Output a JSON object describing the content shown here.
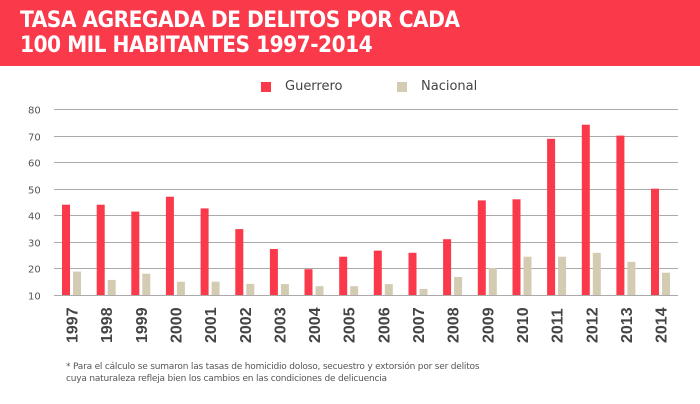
{
  "header": {
    "title_line1": "TASA AGREGADA DE DELITOS POR CADA",
    "title_line2": "100 MIL HABITANTES 1997-2014"
  },
  "colors": {
    "banner": "#fa394b",
    "guerrero": "#fa394b",
    "nacional": "#d4ccb2",
    "grid": "#aaaaaa",
    "tick_text": "#444444"
  },
  "footnote": {
    "line1": "* Para el cálculo se sumaron las tasas de homicidio doloso, secuestro y extorsión por ser delitos",
    "line2": "cuya naturaleza refleja bien los cambios en las condiciones de delicuencia"
  },
  "chart_data": {
    "type": "bar",
    "title": "TASA AGREGADA DE DELITOS POR CADA 100 MIL HABITANTES 1997-2014",
    "xlabel": "",
    "ylabel": "",
    "categories": [
      "1997",
      "1998",
      "1999",
      "2000",
      "2001",
      "2002",
      "2003",
      "2004",
      "2005",
      "2006",
      "2007",
      "2008",
      "2009",
      "2010",
      "2011",
      "2012",
      "2013",
      "2014"
    ],
    "series": [
      {
        "name": "Guerrero",
        "color": "#fa394b",
        "values": [
          44,
          44,
          41.4,
          47,
          42.6,
          34.8,
          27.3,
          19.7,
          24.4,
          26.7,
          25.9,
          31,
          45.6,
          46,
          68.8,
          74.1,
          70,
          50
        ]
      },
      {
        "name": "Nacional",
        "color": "#d4ccb2",
        "values": [
          18.8,
          15.7,
          18,
          15,
          15,
          14.2,
          14.1,
          13.3,
          13.3,
          14.1,
          12.3,
          16.8,
          20.2,
          24.4,
          24.4,
          25.9,
          22.5,
          18.4
        ]
      }
    ],
    "ylim": [
      10,
      80
    ],
    "yticks": [
      "10",
      "20",
      "30",
      "40",
      "50",
      "60",
      "70",
      "80"
    ],
    "grid": true,
    "legend_position": "top-center"
  }
}
